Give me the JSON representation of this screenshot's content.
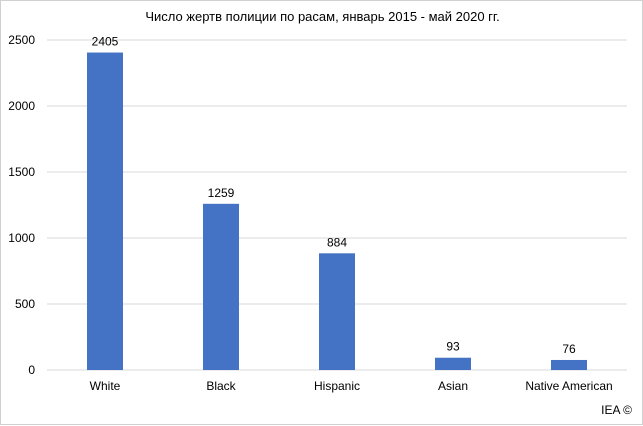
{
  "chart_data": {
    "type": "bar",
    "title": "Число жертв полиции по расам,  январь 2015 - май 2020 гг.",
    "categories": [
      "White",
      "Black",
      "Hispanic",
      "Asian",
      "Native American"
    ],
    "values": [
      2405,
      1259,
      884,
      93,
      76
    ],
    "data_labels": [
      "2405",
      "1259",
      "884",
      "93",
      "76"
    ],
    "y_ticks": [
      0,
      500,
      1000,
      1500,
      2000,
      2500
    ],
    "y_tick_labels": [
      "0",
      "500",
      "1000",
      "1500",
      "2000",
      "2500"
    ],
    "ylim": [
      0,
      2500
    ],
    "xlabel": "",
    "ylabel": "",
    "grid": true,
    "bar_color": "#4472c4",
    "grid_color": "#d9d9d9"
  },
  "watermark": "IEA ©"
}
